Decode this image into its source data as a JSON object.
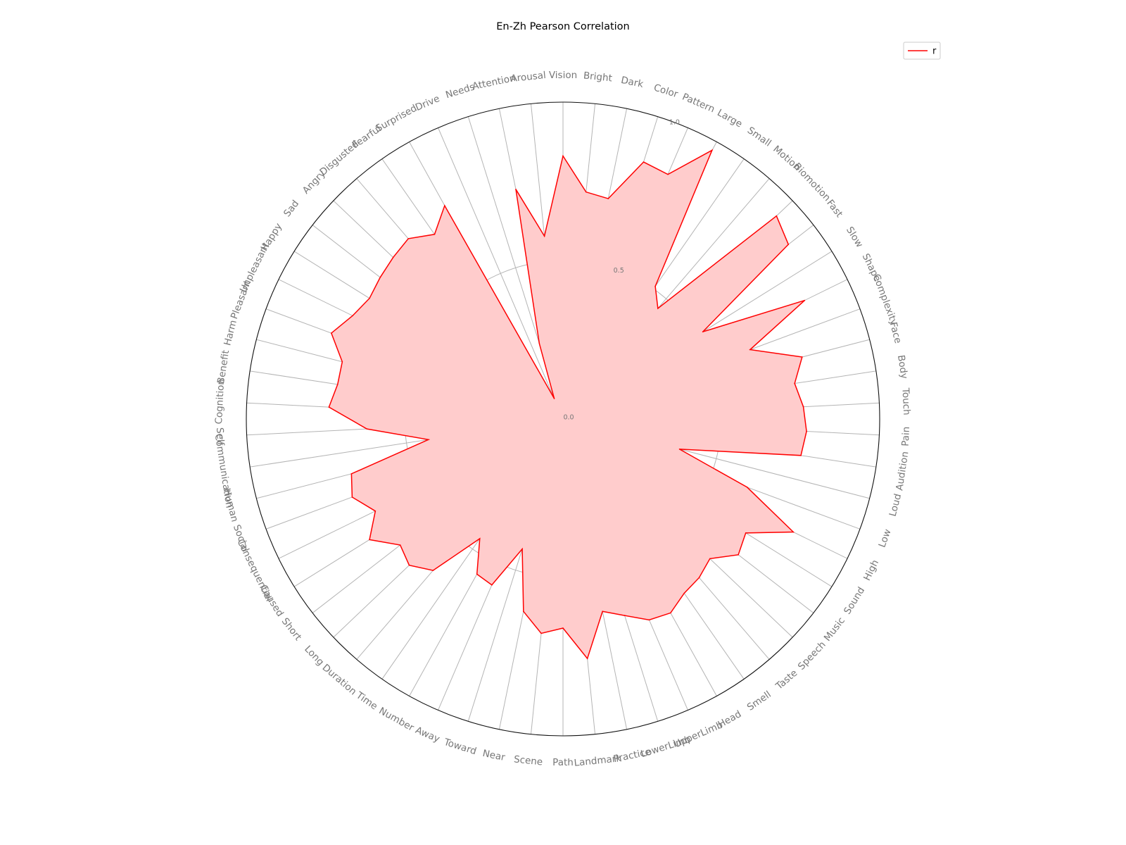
{
  "chart_data": {
    "type": "radar",
    "title": "En-Zh Pearson Correlation",
    "radial_range": [
      0,
      1
    ],
    "radial_ticks": [
      "0.0",
      "0.5",
      "1.0"
    ],
    "grid": true,
    "legend_position": "top-right",
    "categories": [
      "Vision",
      "Bright",
      "Dark",
      "Color",
      "Pattern",
      "Large",
      "Small",
      "Motion",
      "Biomotion",
      "Fast",
      "Slow",
      "Shape",
      "Complexity",
      "Face",
      "Body",
      "Touch",
      "Pain",
      "Audition",
      "Loud",
      "Low",
      "High",
      "Sound",
      "Music",
      "Speech",
      "Taste",
      "Smell",
      "Head",
      "UpperLimb",
      "LowerLimb",
      "Practice",
      "Landmark",
      "Path",
      "Scene",
      "Near",
      "Toward",
      "Away",
      "Number",
      "Time",
      "Duration",
      "Long",
      "Short",
      "Caused",
      "Consequential",
      "Social",
      "Human",
      "Communication",
      "Self",
      "Cognition",
      "Benefit",
      "Harm",
      "Pleasant",
      "Unpleasant",
      "Happy",
      "Sad",
      "Angry",
      "Disgusted",
      "Fearful",
      "Surprised",
      "Drive",
      "Needs",
      "Attention",
      "Arousal"
    ],
    "series": [
      {
        "name": "r",
        "color": "#ff0000",
        "fill": "#ffcccc",
        "values": [
          0.83,
          0.72,
          0.71,
          0.85,
          0.84,
          0.97,
          0.51,
          0.46,
          0.93,
          0.9,
          0.52,
          0.85,
          0.63,
          0.78,
          0.74,
          0.76,
          0.77,
          0.76,
          0.38,
          0.62,
          0.81,
          0.68,
          0.7,
          0.64,
          0.66,
          0.67,
          0.7,
          0.69,
          0.65,
          0.62,
          0.76,
          0.66,
          0.68,
          0.62,
          0.43,
          0.57,
          0.56,
          0.46,
          0.63,
          0.67,
          0.65,
          0.72,
          0.66,
          0.71,
          0.69,
          0.43,
          0.62,
          0.74,
          0.72,
          0.72,
          0.78,
          0.74,
          0.72,
          0.73,
          0.74,
          0.75,
          0.71,
          0.77,
          0.07,
          0.25,
          0.74,
          0.58
        ]
      }
    ]
  }
}
